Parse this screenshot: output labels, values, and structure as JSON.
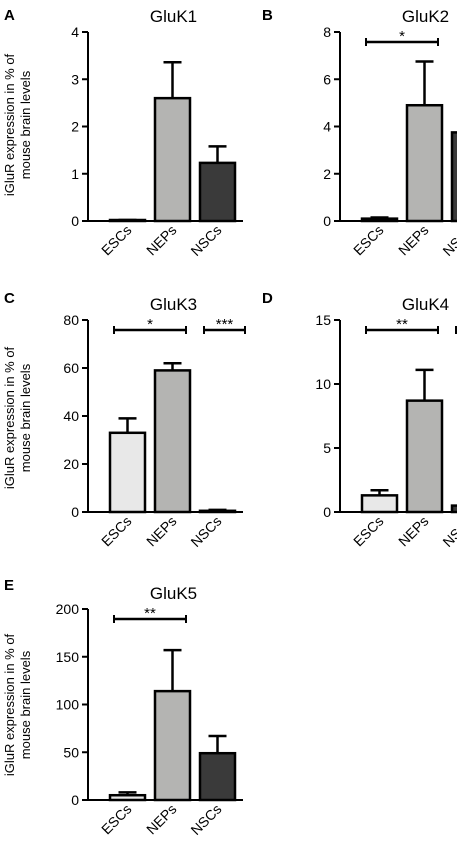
{
  "figure": {
    "ylabel_line1": "iGluR expression in % of",
    "ylabel_line2": "mouse brain levels"
  },
  "colors": {
    "ESCs": "#e8e8e8",
    "NEPs": "#b4b4b2",
    "NSCs": "#3a3a3a",
    "stroke": "#000000"
  },
  "chart_data": [
    {
      "type": "bar",
      "panel": "A",
      "title": "GluK1",
      "categories": [
        "ESCs",
        "NEPs",
        "NSCs"
      ],
      "values": [
        0.01,
        2.6,
        1.23
      ],
      "errors": [
        0.01,
        0.76,
        0.35
      ],
      "ylim": [
        0,
        4
      ],
      "yticks": [
        0,
        1,
        2,
        3,
        4
      ],
      "significance": []
    },
    {
      "type": "bar",
      "panel": "B",
      "title": "GluK2",
      "categories": [
        "ESCs",
        "NEPs",
        "NSCs"
      ],
      "values": [
        0.1,
        4.9,
        3.75
      ],
      "errors": [
        0.05,
        1.85,
        0.95
      ],
      "ylim": [
        0,
        8
      ],
      "yticks": [
        0,
        2,
        4,
        6,
        8
      ],
      "significance": [
        {
          "from": 0,
          "to": 1,
          "label": "*"
        }
      ]
    },
    {
      "type": "bar",
      "panel": "C",
      "title": "GluK3",
      "categories": [
        "ESCs",
        "NEPs",
        "NSCs"
      ],
      "values": [
        33,
        59,
        0.5
      ],
      "errors": [
        6,
        3,
        0.4
      ],
      "ylim": [
        0,
        80
      ],
      "yticks": [
        0,
        20,
        40,
        60,
        80
      ],
      "significance": [
        {
          "from": 0,
          "to": 1,
          "label": "*"
        },
        {
          "from": 2,
          "to": 3,
          "label": "***"
        }
      ]
    },
    {
      "type": "bar",
      "panel": "D",
      "title": "GluK4",
      "categories": [
        "ESCs",
        "NEPs",
        "NSCs"
      ],
      "values": [
        1.3,
        8.7,
        0.5
      ],
      "errors": [
        0.4,
        2.4,
        0.5
      ],
      "ylim": [
        0,
        15
      ],
      "yticks": [
        0,
        5,
        10,
        15
      ],
      "significance": [
        {
          "from": 0,
          "to": 1,
          "label": "**"
        },
        {
          "from": 2,
          "to": 3,
          "label": "*"
        }
      ]
    },
    {
      "type": "bar",
      "panel": "E",
      "title": "GluK5",
      "categories": [
        "ESCs",
        "NEPs",
        "NSCs"
      ],
      "values": [
        5,
        114,
        49
      ],
      "errors": [
        3,
        43,
        18
      ],
      "ylim": [
        0,
        200
      ],
      "yticks": [
        0,
        50,
        100,
        150,
        200
      ],
      "significance": [
        {
          "from": 0,
          "to": 1,
          "label": "**"
        }
      ]
    }
  ]
}
